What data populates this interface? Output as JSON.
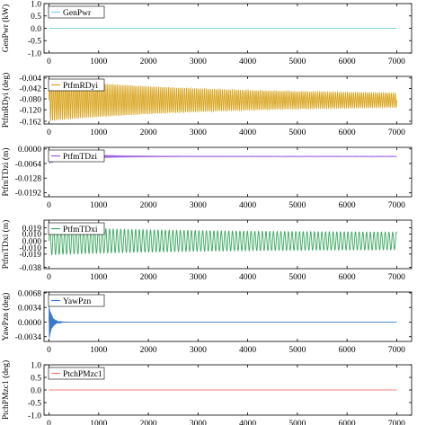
{
  "chart_data": [
    {
      "type": "line",
      "ylabel": "GenPwr (kW)",
      "legend": "GenPwr",
      "legend_position": "top-left",
      "color": "#7fd3e8",
      "xlim": [
        -100,
        7300
      ],
      "ylim": [
        -1.0,
        1.0
      ],
      "yticks": [
        "1.0",
        "0.5",
        "0.0",
        "-0.5",
        "-1.0"
      ],
      "ytick_values": [
        1.0,
        0.5,
        0.0,
        -0.5,
        -1.0
      ],
      "xticks": [
        "0",
        "1000",
        "2000",
        "3000",
        "4000",
        "5000",
        "6000",
        "7000"
      ],
      "xtick_values": [
        0,
        1000,
        2000,
        3000,
        4000,
        5000,
        6000,
        7000
      ],
      "signal": {
        "x_end": 7000,
        "mean": 0.0,
        "amp_start": 0.0,
        "amp_end": 0.0,
        "decay_time": 1000,
        "period": 100
      }
    },
    {
      "type": "line",
      "ylabel": "PtfmRDyi (deg)",
      "legend": "PtfmRDyi",
      "legend_position": "top-left",
      "color": "#d9a520",
      "xlim": [
        -100,
        7300
      ],
      "ylim": [
        -0.172,
        0.002
      ],
      "yticks": [
        "-0.004",
        "-0.042",
        "-0.080",
        "-0.120",
        "-0.162"
      ],
      "ytick_values": [
        -0.004,
        -0.042,
        -0.08,
        -0.12,
        -0.162
      ],
      "xticks": [
        "0",
        "1000",
        "2000",
        "3000",
        "4000",
        "5000",
        "6000",
        "7000"
      ],
      "xtick_values": [
        0,
        1000,
        2000,
        3000,
        4000,
        5000,
        6000,
        7000
      ],
      "signal": {
        "x_end": 7000,
        "mean": -0.085,
        "amp_start": 0.075,
        "amp_end": 0.018,
        "decay_time": 3500,
        "period": 40
      }
    },
    {
      "type": "line",
      "ylabel": "PtfmTDzi (m)",
      "legend": "PtfmTDzi",
      "legend_position": "top-left",
      "color": "#9b5fe0",
      "xlim": [
        -100,
        7300
      ],
      "ylim": [
        -0.021,
        0.0007
      ],
      "yticks": [
        "0.0000",
        "-0.0064",
        "-0.0128",
        "-0.0192"
      ],
      "ytick_values": [
        0.0,
        -0.0064,
        -0.0128,
        -0.0192
      ],
      "xticks": [
        "0",
        "1000",
        "2000",
        "3000",
        "4000",
        "5000",
        "6000",
        "7000"
      ],
      "xtick_values": [
        0,
        1000,
        2000,
        3000,
        4000,
        5000,
        6000,
        7000
      ],
      "signal": {
        "x_end": 7000,
        "mean": -0.0033,
        "amp_start": 0.0028,
        "amp_end": 0.0001,
        "decay_time": 600,
        "period": 25
      }
    },
    {
      "type": "line",
      "ylabel": "PtfmTDxi (m)",
      "legend": "PtfmTDxi",
      "legend_position": "top-left",
      "color": "#3aa860",
      "xlim": [
        -100,
        7300
      ],
      "ylim": [
        -0.04,
        0.03
      ],
      "yticks": [
        "0.019",
        "0.010",
        "0.000",
        "-0.010",
        "-0.019",
        "-0.038"
      ],
      "ytick_values": [
        0.019,
        0.01,
        0.0,
        -0.01,
        -0.019,
        -0.038
      ],
      "xticks": [
        "0",
        "1000",
        "2000",
        "3000",
        "4000",
        "5000",
        "6000",
        "7000"
      ],
      "xtick_values": [
        0,
        1000,
        2000,
        3000,
        4000,
        5000,
        6000,
        7000
      ],
      "signal": {
        "x_end": 7000,
        "mean": 0.0,
        "amp_start": 0.02,
        "amp_end": 0.012,
        "decay_time": 3000,
        "period": 75
      }
    },
    {
      "type": "line",
      "ylabel": "YawPzn (deg)",
      "legend": "YawPzn",
      "legend_position": "top-left",
      "color": "#3a78c8",
      "xlim": [
        -100,
        7300
      ],
      "ylim": [
        -0.0045,
        0.007
      ],
      "yticks": [
        "0.0068",
        "0.0034",
        "0.0000",
        "-0.0034"
      ],
      "ytick_values": [
        0.0068,
        0.0034,
        0.0,
        -0.0034
      ],
      "xticks": [
        "0",
        "1000",
        "2000",
        "3000",
        "4000",
        "5000",
        "6000",
        "7000"
      ],
      "xtick_values": [
        0,
        1000,
        2000,
        3000,
        4000,
        5000,
        6000,
        7000
      ],
      "signal": {
        "x_end": 7000,
        "mean": 0.0,
        "amp_start": 0.0042,
        "amp_end": 0.0,
        "decay_time": 60,
        "period": 10
      }
    },
    {
      "type": "line",
      "ylabel": "PtchPMzc1 (deg)",
      "legend": "PtchPMzc1",
      "legend_position": "top-left",
      "color": "#f08080",
      "xlim": [
        -100,
        7300
      ],
      "ylim": [
        -1.0,
        1.0
      ],
      "yticks": [
        "1.0",
        "0.5",
        "0.0",
        "-0.5",
        "-1.0"
      ],
      "ytick_values": [
        1.0,
        0.5,
        0.0,
        -0.5,
        -1.0
      ],
      "xticks": [
        "0",
        "1000",
        "2000",
        "3000",
        "4000",
        "5000",
        "6000",
        "7000"
      ],
      "xtick_values": [
        0,
        1000,
        2000,
        3000,
        4000,
        5000,
        6000,
        7000
      ],
      "signal": {
        "x_end": 7000,
        "mean": 0.0,
        "amp_start": 0.0,
        "amp_end": 0.0,
        "decay_time": 1000,
        "period": 100
      }
    }
  ]
}
